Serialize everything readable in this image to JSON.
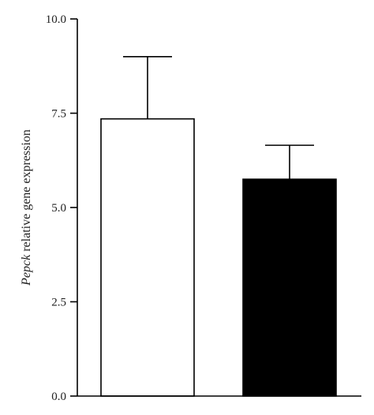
{
  "chart_data": {
    "type": "bar",
    "title": "",
    "ylabel": {
      "italic": "Pepck",
      "rest": " relative gene expression"
    },
    "xlabel": "",
    "ylim": [
      0,
      10
    ],
    "y_ticks": [
      {
        "value": 0,
        "label": "0.0"
      },
      {
        "value": 2.5,
        "label": "2.5"
      },
      {
        "value": 5,
        "label": "5.0"
      },
      {
        "value": 7.5,
        "label": "7.5"
      },
      {
        "value": 10,
        "label": "10.0"
      }
    ],
    "bars": [
      {
        "value": 7.35,
        "error": 1.65,
        "fill": "#ffffff",
        "stroke": "#000000"
      },
      {
        "value": 5.75,
        "error": 0.9,
        "fill": "#000000",
        "stroke": "#000000"
      }
    ],
    "grid": false,
    "legend": "none"
  }
}
